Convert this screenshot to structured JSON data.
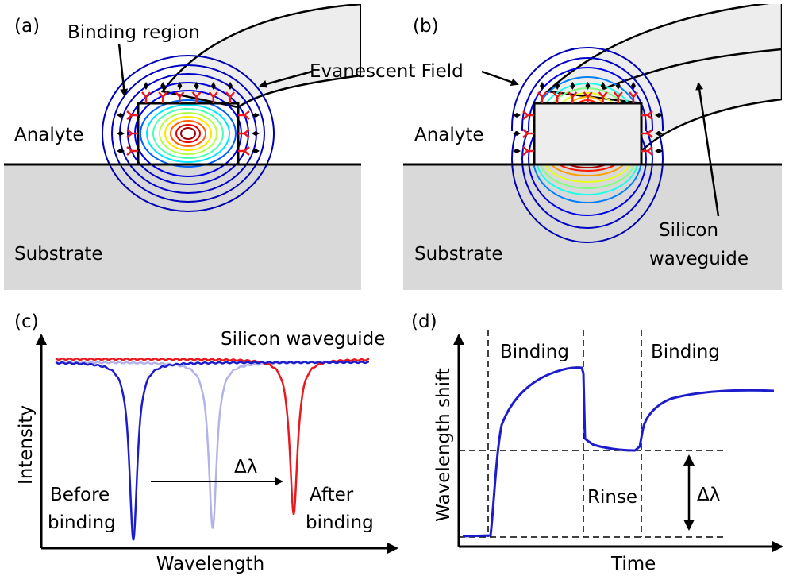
{
  "panel_a": {
    "label": "(a)",
    "binding_region": "Binding region",
    "evanescent_field": "Evanescent Field",
    "analyte": "Analyte",
    "substrate": "Substrate"
  },
  "panel_b": {
    "label": "(b)",
    "analyte": "Analyte",
    "substrate": "Substrate",
    "waveguide_line1": "Silicon",
    "waveguide_line2": "waveguide"
  },
  "panel_c": {
    "label": "(c)",
    "title": "Silicon waveguide",
    "y_axis": "Intensity",
    "x_axis": "Wavelength",
    "before_line1": "Before",
    "before_line2": "binding",
    "shift": "Δλ",
    "after_line1": "After",
    "after_line2": "binding"
  },
  "panel_d": {
    "label": "(d)",
    "binding_1": "Binding",
    "binding_2": "Binding",
    "y_axis": "Wavelength shift",
    "x_axis": "Time",
    "rinse": "Rinse",
    "shift": "Δλ"
  }
}
